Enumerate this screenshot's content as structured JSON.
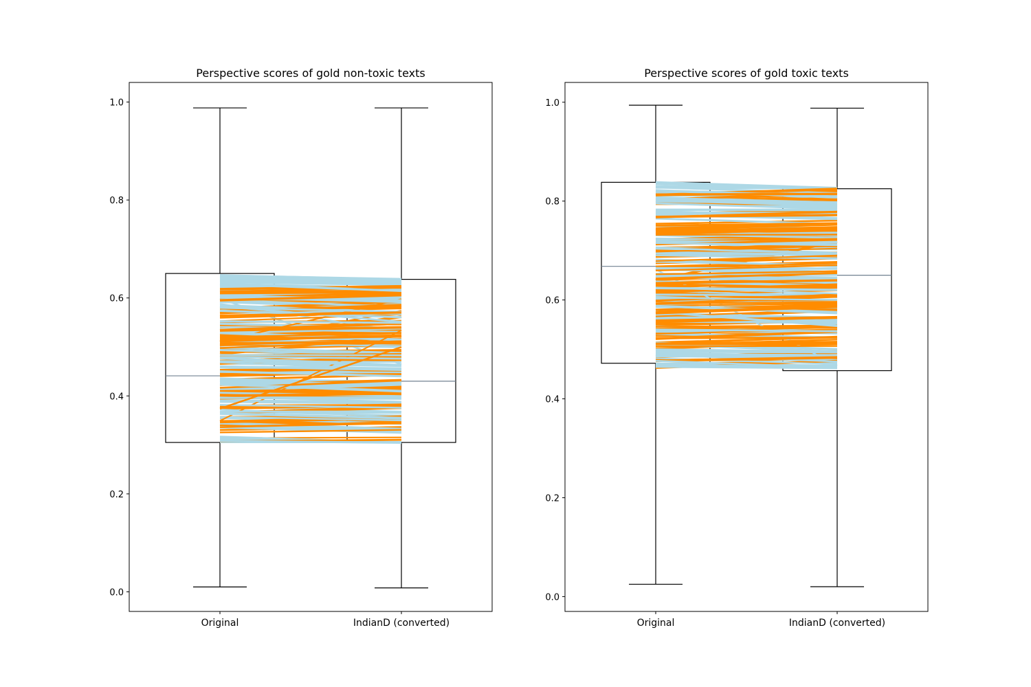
{
  "chart_data": [
    {
      "type": "box",
      "title": "Perspective scores of gold non-toxic texts",
      "xlabel": "",
      "ylabel": "",
      "categories": [
        "Original",
        "IndianD (converted)"
      ],
      "ylim": [
        -0.04,
        1.04
      ],
      "yticks": [
        0.0,
        0.2,
        0.4,
        0.6,
        0.8,
        1.0
      ],
      "boxes": [
        {
          "category": "Original",
          "whisker_low": 0.01,
          "q1": 0.305,
          "median": 0.441,
          "q3": 0.65,
          "whisker_high": 0.988
        },
        {
          "category": "IndianD (converted)",
          "whisker_low": 0.008,
          "q1": 0.305,
          "median": 0.43,
          "q3": 0.638,
          "whisker_high": 0.988
        }
      ],
      "paired_lines": {
        "decrease_color": "#add8e6",
        "increase_color": "#ff8c00",
        "range": [
          0.305,
          0.65
        ],
        "note_count": 220
      },
      "grid": false,
      "legend": "none"
    },
    {
      "type": "box",
      "title": "Perspective scores of gold toxic texts",
      "xlabel": "",
      "ylabel": "",
      "categories": [
        "Original",
        "IndianD (converted)"
      ],
      "ylim": [
        -0.03,
        1.04
      ],
      "yticks": [
        0.0,
        0.2,
        0.4,
        0.6,
        0.8,
        1.0
      ],
      "boxes": [
        {
          "category": "Original",
          "whisker_low": 0.025,
          "q1": 0.472,
          "median": 0.668,
          "q3": 0.838,
          "whisker_high": 0.994
        },
        {
          "category": "IndianD (converted)",
          "whisker_low": 0.02,
          "q1": 0.457,
          "median": 0.65,
          "q3": 0.825,
          "whisker_high": 0.988
        }
      ],
      "paired_lines": {
        "decrease_color": "#add8e6",
        "increase_color": "#ff8c00",
        "range": [
          0.46,
          0.838
        ],
        "note_count": 220
      },
      "grid": false,
      "legend": "none"
    }
  ]
}
